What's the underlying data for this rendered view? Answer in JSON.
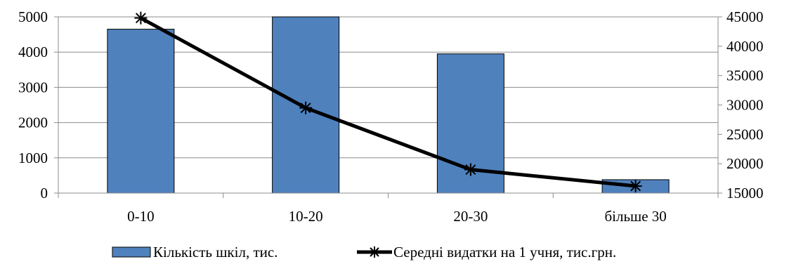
{
  "chart_data": {
    "type": "bar",
    "categories": [
      "0-10",
      "10-20",
      "20-30",
      "більше 30"
    ],
    "series": [
      {
        "name": "Кількість шкіл, тис.",
        "type": "bar",
        "axis": "left",
        "color": "#4F81BD",
        "values": [
          4650,
          5200,
          3950,
          380
        ]
      },
      {
        "name": "Середні видатки на 1 учня, тис.грн.",
        "type": "line",
        "axis": "right",
        "color": "#000000",
        "marker": "asterisk",
        "values": [
          44800,
          29500,
          19000,
          16200
        ]
      }
    ],
    "y_left": {
      "range": [
        0,
        5000
      ],
      "ticks": [
        "0",
        "1000",
        "2000",
        "3000",
        "4000",
        "5000"
      ]
    },
    "y_right": {
      "range": [
        15000,
        45000
      ],
      "ticks": [
        "15000",
        "20000",
        "25000",
        "30000",
        "35000",
        "40000",
        "45000"
      ]
    },
    "grid": true,
    "legend_position": "bottom"
  }
}
